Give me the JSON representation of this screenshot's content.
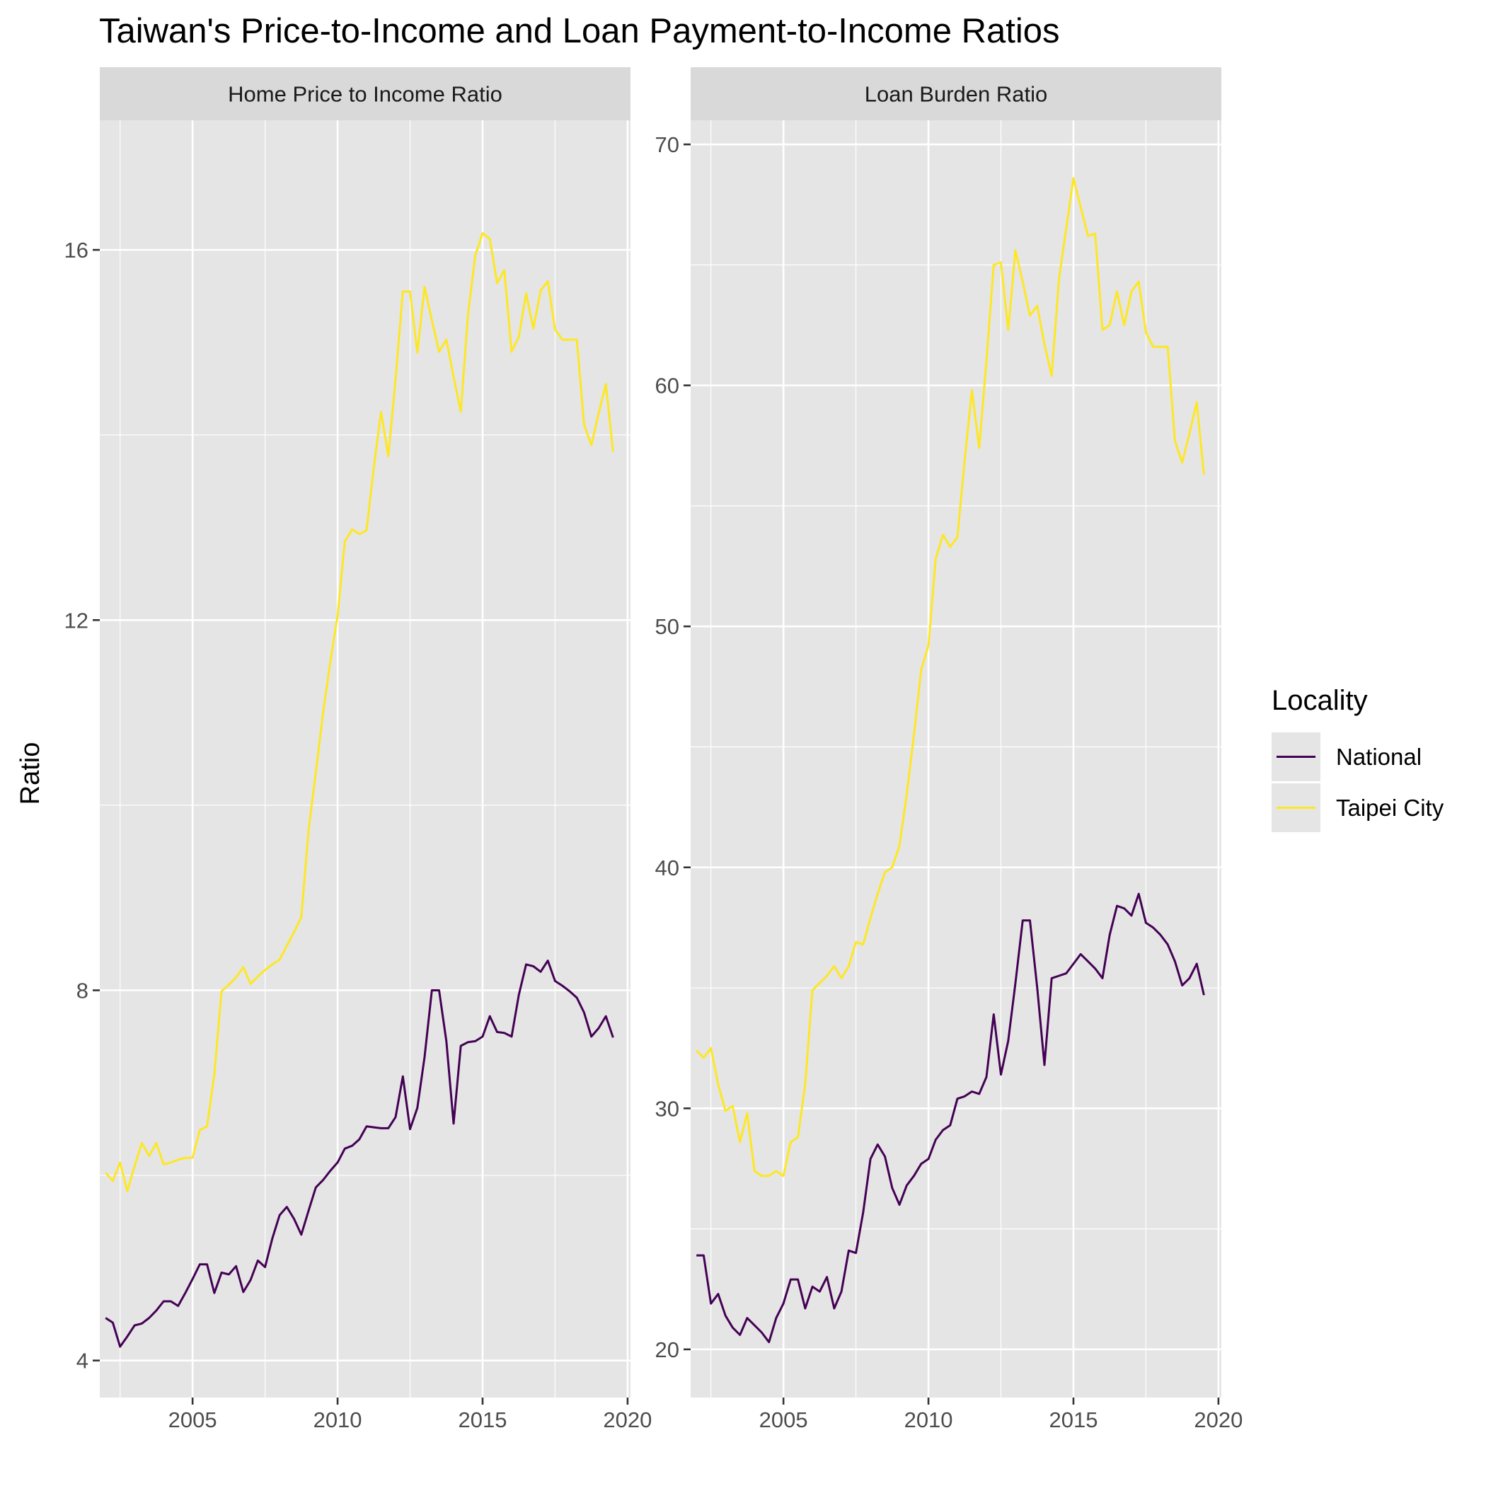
{
  "chart_data": {
    "title": "Taiwan's Price-to-Income and Loan Payment-to-Income Ratios",
    "ylabel": "Ratio",
    "xlabel": "",
    "legend": {
      "title": "Locality",
      "position": "right",
      "entries": [
        {
          "name": "National",
          "color": "#440154"
        },
        {
          "name": "Taipei City",
          "color": "#FDE725"
        }
      ]
    },
    "panel_background": "#E5E5E5",
    "strip_background": "#D9D9D9",
    "grid": true,
    "panels": [
      {
        "type": "line",
        "strip": "Home Price to Income Ratio",
        "xlim": [
          2001.8,
          2020.1
        ],
        "ylim": [
          3.6,
          17.4
        ],
        "xticks": [
          2005,
          2010,
          2015,
          2020
        ],
        "yticks": [
          4,
          8,
          12,
          16
        ],
        "series": [
          {
            "name": "National",
            "x": [
              2002.0,
              2002.25,
              2002.5,
              2002.75,
              2003.0,
              2003.25,
              2003.5,
              2003.75,
              2004.0,
              2004.25,
              2004.5,
              2004.75,
              2005.0,
              2005.25,
              2005.5,
              2005.75,
              2006.0,
              2006.25,
              2006.5,
              2006.75,
              2007.0,
              2007.25,
              2007.5,
              2007.75,
              2008.0,
              2008.25,
              2008.5,
              2008.75,
              2009.0,
              2009.25,
              2009.5,
              2009.75,
              2010.0,
              2010.25,
              2010.5,
              2010.75,
              2011.0,
              2011.25,
              2011.5,
              2011.75,
              2012.0,
              2012.25,
              2012.5,
              2012.75,
              2013.0,
              2013.25,
              2013.5,
              2013.75,
              2014.0,
              2014.25,
              2014.5,
              2014.75,
              2015.0,
              2015.25,
              2015.5,
              2015.75,
              2016.0,
              2016.25,
              2016.5,
              2016.75,
              2017.0,
              2017.25,
              2017.5,
              2017.75,
              2018.0,
              2018.25,
              2018.5,
              2018.75,
              2019.0,
              2019.25,
              2019.5
            ],
            "values": [
              4.46,
              4.41,
              4.15,
              4.26,
              4.38,
              4.4,
              4.46,
              4.54,
              4.64,
              4.64,
              4.59,
              4.73,
              4.88,
              5.04,
              5.04,
              4.73,
              4.95,
              4.93,
              5.02,
              4.74,
              4.87,
              5.08,
              5.01,
              5.32,
              5.57,
              5.66,
              5.53,
              5.36,
              5.62,
              5.87,
              5.95,
              6.05,
              6.14,
              6.29,
              6.32,
              6.39,
              6.53,
              6.52,
              6.51,
              6.51,
              6.63,
              7.07,
              6.5,
              6.73,
              7.28,
              8.0,
              8.0,
              7.45,
              6.56,
              7.4,
              7.44,
              7.45,
              7.5,
              7.72,
              7.55,
              7.54,
              7.5,
              7.95,
              8.28,
              8.26,
              8.2,
              8.32,
              8.1,
              8.05,
              7.99,
              7.92,
              7.76,
              7.5,
              7.59,
              7.72,
              7.49
            ]
          },
          {
            "name": "Taipei City",
            "x": [
              2002.0,
              2002.25,
              2002.5,
              2002.75,
              2003.0,
              2003.25,
              2003.5,
              2003.75,
              2004.0,
              2004.25,
              2004.5,
              2004.75,
              2005.0,
              2005.25,
              2005.5,
              2005.75,
              2006.0,
              2006.25,
              2006.5,
              2006.75,
              2007.0,
              2007.25,
              2007.5,
              2007.75,
              2008.0,
              2008.25,
              2008.5,
              2008.75,
              2009.0,
              2009.25,
              2009.5,
              2009.75,
              2010.0,
              2010.25,
              2010.5,
              2010.75,
              2011.0,
              2011.25,
              2011.5,
              2011.75,
              2012.0,
              2012.25,
              2012.5,
              2012.75,
              2013.0,
              2013.25,
              2013.5,
              2013.75,
              2014.0,
              2014.25,
              2014.5,
              2014.75,
              2015.0,
              2015.25,
              2015.5,
              2015.75,
              2016.0,
              2016.25,
              2016.5,
              2016.75,
              2017.0,
              2017.25,
              2017.5,
              2017.75,
              2018.0,
              2018.25,
              2018.5,
              2018.75,
              2019.0,
              2019.25,
              2019.5
            ],
            "values": [
              6.03,
              5.94,
              6.14,
              5.83,
              6.1,
              6.35,
              6.21,
              6.35,
              6.12,
              6.14,
              6.17,
              6.19,
              6.19,
              6.49,
              6.53,
              7.09,
              7.99,
              8.06,
              8.14,
              8.25,
              8.07,
              8.15,
              8.22,
              8.28,
              8.33,
              8.48,
              8.63,
              8.79,
              9.73,
              10.35,
              11.0,
              11.55,
              12.05,
              12.85,
              12.98,
              12.93,
              12.97,
              13.65,
              14.25,
              13.77,
              14.6,
              15.55,
              15.55,
              14.89,
              15.6,
              15.24,
              14.9,
              15.03,
              14.63,
              14.25,
              15.31,
              15.94,
              16.18,
              16.12,
              15.64,
              15.78,
              14.9,
              15.06,
              15.53,
              15.15,
              15.56,
              15.66,
              15.14,
              15.03,
              15.03,
              15.03,
              14.11,
              13.89,
              14.23,
              14.55,
              13.82
            ]
          }
        ]
      },
      {
        "type": "line",
        "strip": "Loan Burden Ratio",
        "xlim": [
          2001.8,
          2020.1
        ],
        "ylim": [
          18.0,
          71.0
        ],
        "xticks": [
          2005,
          2010,
          2015,
          2020
        ],
        "yticks": [
          20,
          30,
          40,
          50,
          60,
          70
        ],
        "series": [
          {
            "name": "National",
            "x": [
              2002.0,
              2002.25,
              2002.5,
              2002.75,
              2003.0,
              2003.25,
              2003.5,
              2003.75,
              2004.0,
              2004.25,
              2004.5,
              2004.75,
              2005.0,
              2005.25,
              2005.5,
              2005.75,
              2006.0,
              2006.25,
              2006.5,
              2006.75,
              2007.0,
              2007.25,
              2007.5,
              2007.75,
              2008.0,
              2008.25,
              2008.5,
              2008.75,
              2009.0,
              2009.25,
              2009.5,
              2009.75,
              2010.0,
              2010.25,
              2010.5,
              2010.75,
              2011.0,
              2011.25,
              2011.5,
              2011.75,
              2012.0,
              2012.25,
              2012.5,
              2012.75,
              2013.0,
              2013.25,
              2013.5,
              2013.75,
              2014.0,
              2014.25,
              2014.5,
              2014.75,
              2015.0,
              2015.25,
              2015.5,
              2015.75,
              2016.0,
              2016.25,
              2016.5,
              2016.75,
              2017.0,
              2017.25,
              2017.5,
              2017.75,
              2018.0,
              2018.25,
              2018.5,
              2018.75,
              2019.0,
              2019.25,
              2019.5
            ],
            "values": [
              23.9,
              23.9,
              21.9,
              22.3,
              21.4,
              20.9,
              20.6,
              21.3,
              21.0,
              20.7,
              20.3,
              21.3,
              21.9,
              22.9,
              22.9,
              21.7,
              22.6,
              22.4,
              23.0,
              21.7,
              22.4,
              24.1,
              24.0,
              25.7,
              27.9,
              28.5,
              28.0,
              26.7,
              26.0,
              26.8,
              27.2,
              27.7,
              27.9,
              28.7,
              29.1,
              29.3,
              30.4,
              30.5,
              30.7,
              30.6,
              31.3,
              33.9,
              31.4,
              32.8,
              35.2,
              37.8,
              37.8,
              35.0,
              31.8,
              35.4,
              35.5,
              35.6,
              36.0,
              36.4,
              36.1,
              35.8,
              35.4,
              37.2,
              38.4,
              38.3,
              38.0,
              38.9,
              37.7,
              37.5,
              37.2,
              36.8,
              36.1,
              35.1,
              35.4,
              36.0,
              34.7
            ]
          },
          {
            "name": "Taipei City",
            "x": [
              2002.0,
              2002.25,
              2002.5,
              2002.75,
              2003.0,
              2003.25,
              2003.5,
              2003.75,
              2004.0,
              2004.25,
              2004.5,
              2004.75,
              2005.0,
              2005.25,
              2005.5,
              2005.75,
              2006.0,
              2006.25,
              2006.5,
              2006.75,
              2007.0,
              2007.25,
              2007.5,
              2007.75,
              2008.0,
              2008.25,
              2008.5,
              2008.75,
              2009.0,
              2009.25,
              2009.5,
              2009.75,
              2010.0,
              2010.25,
              2010.5,
              2010.75,
              2011.0,
              2011.25,
              2011.5,
              2011.75,
              2012.0,
              2012.25,
              2012.5,
              2012.75,
              2013.0,
              2013.25,
              2013.5,
              2013.75,
              2014.0,
              2014.25,
              2014.5,
              2014.75,
              2015.0,
              2015.25,
              2015.5,
              2015.75,
              2016.0,
              2016.25,
              2016.5,
              2016.75,
              2017.0,
              2017.25,
              2017.5,
              2017.75,
              2018.0,
              2018.25,
              2018.5,
              2018.75,
              2019.0,
              2019.25,
              2019.5
            ],
            "values": [
              32.4,
              32.1,
              32.5,
              31.0,
              29.9,
              30.1,
              28.6,
              29.8,
              27.4,
              27.2,
              27.2,
              27.4,
              27.2,
              28.6,
              28.8,
              31.0,
              34.9,
              35.2,
              35.5,
              35.9,
              35.4,
              35.9,
              36.9,
              36.8,
              37.9,
              38.9,
              39.8,
              40.0,
              40.9,
              43.0,
              45.5,
              48.2,
              49.2,
              52.8,
              53.8,
              53.3,
              53.7,
              56.9,
              59.8,
              57.4,
              61.0,
              65.0,
              65.1,
              62.3,
              65.6,
              64.3,
              62.9,
              63.3,
              61.7,
              60.4,
              64.4,
              66.5,
              68.6,
              67.4,
              66.2,
              66.3,
              62.3,
              62.5,
              63.9,
              62.5,
              63.9,
              64.3,
              62.2,
              61.6,
              61.6,
              61.6,
              57.7,
              56.8,
              58.0,
              59.3,
              56.3
            ]
          }
        ]
      }
    ]
  }
}
